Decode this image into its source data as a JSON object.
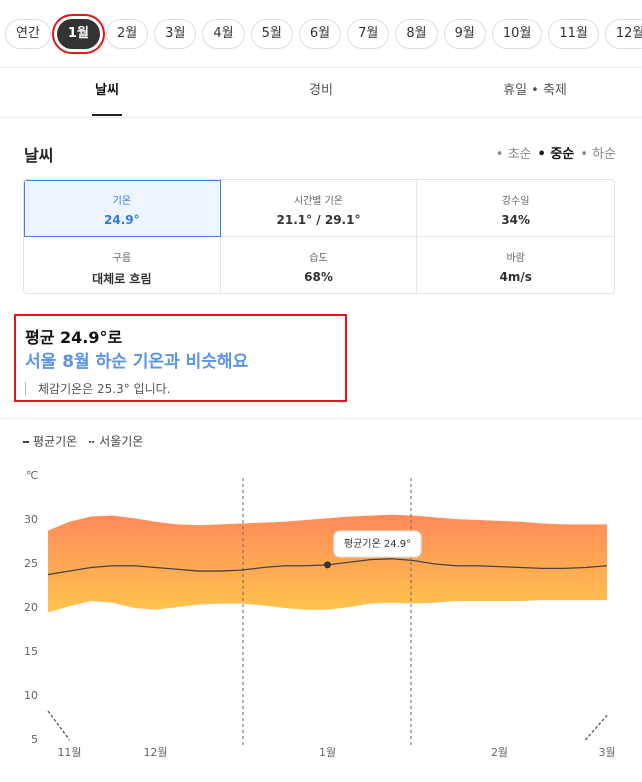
{
  "month_tabs": [
    "연간",
    "1월",
    "2월",
    "3월",
    "4월",
    "5월",
    "6월",
    "7월",
    "8월",
    "9월",
    "10월",
    "11월",
    "12월"
  ],
  "section_tabs": [
    "날씨",
    "경비",
    "휴일 • 축제"
  ],
  "weather": {
    "title": "날씨",
    "periods": [
      "초순",
      "중순",
      "하순"
    ],
    "cards": [
      {
        "label": "기온",
        "value": "24.9°"
      },
      {
        "label": "시간별 기온",
        "value": "21.1° / 29.1°"
      },
      {
        "label": "강수일",
        "value": "34%"
      },
      {
        "label": "구름",
        "value": "대체로 흐림"
      },
      {
        "label": "습도",
        "value": "68%"
      },
      {
        "label": "바람",
        "value": "4m/s"
      }
    ]
  },
  "summary": {
    "headline": "평균 24.9°로",
    "comparison": "서울 8월 하순 기온과 비슷해요",
    "feels_like": "체감기온은 25.3° 입니다."
  },
  "chart_data": {
    "type": "line",
    "y_label": "℃",
    "categories": [
      null,
      "11월",
      null,
      null,
      null,
      "12월",
      null,
      null,
      null,
      null,
      null,
      null,
      null,
      "1월",
      null,
      null,
      null,
      null,
      null,
      null,
      null,
      "2월",
      null,
      null,
      null,
      null,
      "3월"
    ],
    "series": [
      {
        "name": "평균기온",
        "color": "#444444",
        "values": [
          23.8,
          24.2,
          24.6,
          24.8,
          24.8,
          24.6,
          24.4,
          24.2,
          24.2,
          24.3,
          24.6,
          24.8,
          24.8,
          24.9,
          25.2,
          25.5,
          25.6,
          25.4,
          25.0,
          24.8,
          24.8,
          24.7,
          24.6,
          24.5,
          24.5,
          24.6,
          24.8
        ]
      },
      {
        "name": "서울기온",
        "color": "#555555",
        "dashed": true,
        "values": [
          8.3,
          5,
          null,
          null,
          null,
          null,
          null,
          null,
          null,
          null,
          null,
          null,
          null,
          null,
          null,
          null,
          null,
          null,
          null,
          null,
          null,
          null,
          null,
          null,
          null,
          5,
          7.8
        ]
      }
    ],
    "band": {
      "colors": [
        "#ff8a5c",
        "#ffc44c"
      ],
      "upper": [
        28.8,
        29.8,
        30.4,
        30.5,
        30.2,
        29.8,
        29.5,
        29.4,
        29.5,
        29.6,
        29.7,
        29.8,
        30.0,
        30.2,
        30.4,
        30.5,
        30.6,
        30.5,
        30.3,
        30.1,
        30.0,
        29.9,
        29.8,
        29.6,
        29.5,
        29.5,
        29.5
      ],
      "lower": [
        19.5,
        20.2,
        20.8,
        20.6,
        20.0,
        19.8,
        20.1,
        20.4,
        20.5,
        20.5,
        20.3,
        20.0,
        19.8,
        19.8,
        20.1,
        20.5,
        20.6,
        20.5,
        20.6,
        20.8,
        20.8,
        20.8,
        20.8,
        20.9,
        20.9,
        20.9,
        20.9
      ]
    },
    "tooltip": "평균기온 24.9°",
    "ylim": [
      5,
      32
    ],
    "yticks": [
      5,
      10,
      15,
      20,
      25,
      30
    ]
  }
}
